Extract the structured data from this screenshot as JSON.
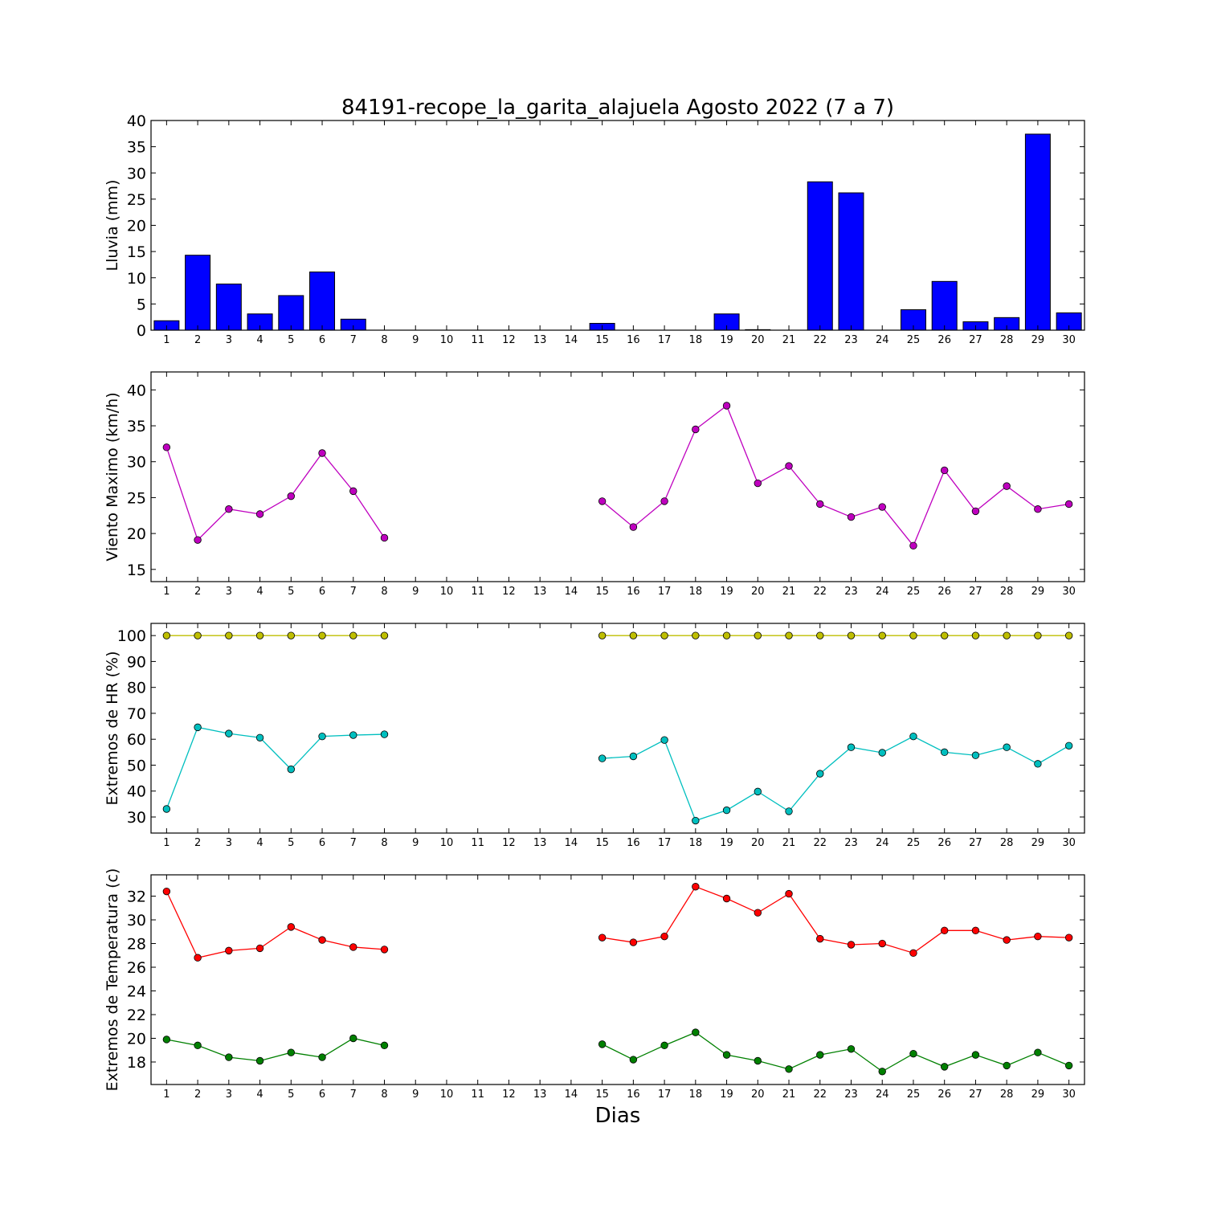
{
  "chart_data": [
    {
      "type": "bar",
      "title": "84191-recope_la_garita_alajuela Agosto 2022  (7 a 7)",
      "ylabel": "Lluvia (mm)",
      "ylim": [
        0,
        40
      ],
      "yticks": [
        0,
        5,
        10,
        15,
        20,
        25,
        30,
        35,
        40
      ],
      "categories": [
        1,
        2,
        3,
        4,
        5,
        6,
        7,
        8,
        9,
        10,
        11,
        12,
        13,
        14,
        15,
        16,
        17,
        18,
        19,
        20,
        21,
        22,
        23,
        24,
        25,
        26,
        27,
        28,
        29,
        30
      ],
      "series": [
        {
          "color": "#0000ff",
          "values": [
            1.8,
            14.3,
            8.8,
            3.1,
            6.6,
            11.1,
            2.1,
            0,
            0,
            0,
            0,
            0,
            0,
            0,
            1.3,
            0,
            0,
            0,
            3.1,
            0.1,
            0,
            28.3,
            26.2,
            0,
            3.9,
            9.3,
            1.6,
            2.4,
            37.4,
            3.3
          ]
        }
      ]
    },
    {
      "type": "line",
      "ylabel": "Viento Maximo (km/h)",
      "ylim": [
        13.3,
        42.5
      ],
      "yticks": [
        15,
        20,
        25,
        30,
        35,
        40
      ],
      "categories": [
        1,
        2,
        3,
        4,
        5,
        6,
        7,
        8,
        9,
        10,
        11,
        12,
        13,
        14,
        15,
        16,
        17,
        18,
        19,
        20,
        21,
        22,
        23,
        24,
        25,
        26,
        27,
        28,
        29,
        30
      ],
      "series": [
        {
          "color": "#bf00bf",
          "values": [
            32.0,
            19.1,
            23.4,
            22.7,
            25.2,
            31.2,
            25.9,
            19.4,
            null,
            null,
            null,
            null,
            null,
            null,
            24.5,
            20.9,
            24.5,
            34.5,
            37.8,
            27.0,
            29.4,
            24.1,
            22.3,
            23.7,
            18.3,
            28.8,
            23.1,
            26.6,
            23.4,
            24.1
          ]
        }
      ]
    },
    {
      "type": "line",
      "ylabel": "Extremos de HR (%)",
      "ylim": [
        23.8,
        104.7
      ],
      "yticks": [
        30,
        40,
        50,
        60,
        70,
        80,
        90,
        100
      ],
      "categories": [
        1,
        2,
        3,
        4,
        5,
        6,
        7,
        8,
        9,
        10,
        11,
        12,
        13,
        14,
        15,
        16,
        17,
        18,
        19,
        20,
        21,
        22,
        23,
        24,
        25,
        26,
        27,
        28,
        29,
        30
      ],
      "series": [
        {
          "color": "#bfbf00",
          "values": [
            100,
            100,
            100,
            100,
            100,
            100,
            100,
            100,
            null,
            null,
            null,
            null,
            null,
            null,
            100,
            100,
            100,
            100,
            100,
            100,
            100,
            100,
            100,
            100,
            100,
            100,
            100,
            100,
            100,
            100
          ]
        },
        {
          "color": "#00bfbf",
          "values": [
            33.1,
            64.6,
            62.2,
            60.6,
            48.4,
            61.1,
            61.6,
            61.9,
            null,
            null,
            null,
            null,
            null,
            null,
            52.6,
            53.4,
            59.7,
            28.6,
            32.6,
            39.8,
            32.2,
            46.7,
            56.9,
            54.8,
            61.1,
            55.0,
            53.8,
            56.9,
            50.5,
            57.5
          ]
        }
      ]
    },
    {
      "type": "line",
      "ylabel": "Extremos de Temperatura (c)",
      "ylim": [
        16.1,
        33.8
      ],
      "yticks": [
        18,
        20,
        22,
        24,
        26,
        28,
        30,
        32
      ],
      "xlabel": "Dias",
      "categories": [
        1,
        2,
        3,
        4,
        5,
        6,
        7,
        8,
        9,
        10,
        11,
        12,
        13,
        14,
        15,
        16,
        17,
        18,
        19,
        20,
        21,
        22,
        23,
        24,
        25,
        26,
        27,
        28,
        29,
        30
      ],
      "series": [
        {
          "color": "#ff0000",
          "values": [
            32.4,
            26.8,
            27.4,
            27.6,
            29.4,
            28.3,
            27.7,
            27.5,
            null,
            null,
            null,
            null,
            null,
            null,
            28.5,
            28.1,
            28.6,
            32.8,
            31.8,
            30.6,
            32.2,
            28.4,
            27.9,
            28.0,
            27.2,
            29.1,
            29.1,
            28.3,
            28.6,
            28.5
          ]
        },
        {
          "color": "#008000",
          "values": [
            19.9,
            19.4,
            18.4,
            18.1,
            18.8,
            18.4,
            20.0,
            19.4,
            null,
            null,
            null,
            null,
            null,
            null,
            19.5,
            18.2,
            19.4,
            20.5,
            18.6,
            18.1,
            17.4,
            18.6,
            19.1,
            17.2,
            18.7,
            17.6,
            18.6,
            17.7,
            18.8,
            17.7
          ]
        }
      ]
    }
  ]
}
